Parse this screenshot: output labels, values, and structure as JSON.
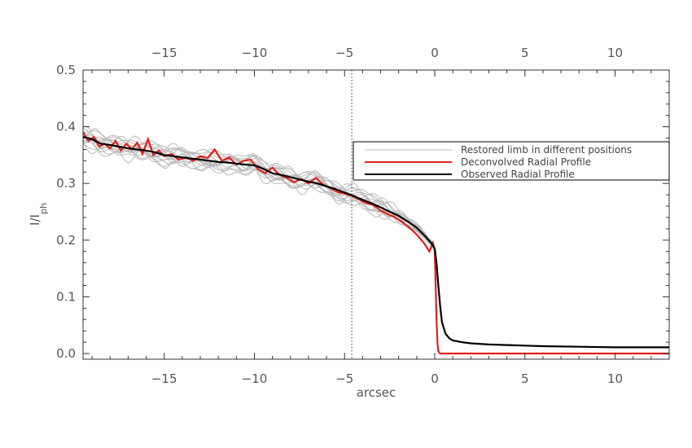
{
  "chart_data": {
    "type": "line",
    "xlabel": "arcsec",
    "ylabel": "I/I",
    "ylabel_subscript": "ph",
    "xlim": [
      -19.5,
      13
    ],
    "ylim": [
      -0.01,
      0.5
    ],
    "x_ticks": [
      -15,
      -10,
      -5,
      0,
      5,
      10
    ],
    "x_tick_labels": [
      "−15",
      "−10",
      "−5",
      "0",
      "5",
      "10"
    ],
    "y_ticks": [
      0.0,
      0.1,
      0.2,
      0.3,
      0.4,
      0.5
    ],
    "y_tick_labels": [
      "0.0",
      "0.1",
      "0.2",
      "0.3",
      "0.4",
      "0.5"
    ],
    "top_axis_ticks": [
      -15,
      -10,
      -5,
      0,
      5,
      10
    ],
    "top_axis_tick_labels": [
      "−15",
      "−10",
      "−5",
      "0",
      "5",
      "10"
    ],
    "vertical_dotted_line_x": -4.6,
    "legend_position": "right, middle",
    "series": [
      {
        "name": "Restored limb in different positions",
        "color": "#b8b8b8",
        "count": 14
      },
      {
        "name": "Deconvolved Radial Profile",
        "color": "#e0201a",
        "x": [
          -19.5,
          -19.2,
          -18.9,
          -18.6,
          -18.3,
          -18.0,
          -17.7,
          -17.4,
          -17.1,
          -16.8,
          -16.5,
          -16.2,
          -15.9,
          -15.6,
          -15.3,
          -15.0,
          -14.6,
          -14.2,
          -13.8,
          -13.4,
          -13.0,
          -12.6,
          -12.2,
          -11.8,
          -11.4,
          -11.0,
          -10.6,
          -10.2,
          -9.8,
          -9.4,
          -9.0,
          -8.6,
          -8.2,
          -7.8,
          -7.4,
          -7.0,
          -6.6,
          -6.2,
          -5.8,
          -5.4,
          -5.0,
          -4.6,
          -4.2,
          -3.8,
          -3.4,
          -3.0,
          -2.6,
          -2.2,
          -1.8,
          -1.4,
          -1.0,
          -0.6,
          -0.3,
          -0.1,
          0.0,
          0.05,
          0.1,
          0.15,
          0.2,
          0.3,
          0.5,
          1.0,
          3.0,
          6.0,
          9.0,
          13.0
        ],
        "y": [
          0.39,
          0.375,
          0.382,
          0.365,
          0.37,
          0.362,
          0.375,
          0.358,
          0.37,
          0.36,
          0.372,
          0.352,
          0.378,
          0.35,
          0.358,
          0.348,
          0.352,
          0.342,
          0.346,
          0.34,
          0.348,
          0.345,
          0.36,
          0.34,
          0.346,
          0.333,
          0.34,
          0.342,
          0.325,
          0.318,
          0.328,
          0.315,
          0.31,
          0.302,
          0.308,
          0.3,
          0.31,
          0.298,
          0.292,
          0.285,
          0.282,
          0.278,
          0.272,
          0.265,
          0.262,
          0.252,
          0.246,
          0.24,
          0.232,
          0.222,
          0.21,
          0.195,
          0.18,
          0.195,
          0.182,
          0.12,
          0.06,
          0.02,
          0.004,
          0.0,
          0.0,
          0.0,
          0.0,
          0.0,
          0.0,
          0.0
        ]
      },
      {
        "name": "Observed Radial Profile",
        "color": "#000000",
        "x": [
          -19.5,
          -19.0,
          -18.5,
          -18.0,
          -17.5,
          -17.0,
          -16.5,
          -16.0,
          -15.5,
          -15.0,
          -14.5,
          -14.0,
          -13.5,
          -13.0,
          -12.5,
          -12.0,
          -11.5,
          -11.0,
          -10.5,
          -10.0,
          -9.5,
          -9.0,
          -8.5,
          -8.0,
          -7.5,
          -7.0,
          -6.5,
          -6.0,
          -5.5,
          -5.0,
          -4.5,
          -4.0,
          -3.5,
          -3.0,
          -2.5,
          -2.0,
          -1.5,
          -1.0,
          -0.5,
          -0.2,
          0.0,
          0.1,
          0.2,
          0.3,
          0.4,
          0.6,
          0.8,
          1.0,
          1.5,
          2.0,
          3.0,
          4.0,
          5.0,
          6.0,
          8.0,
          10.0,
          13.0
        ],
        "y": [
          0.382,
          0.378,
          0.37,
          0.368,
          0.365,
          0.362,
          0.36,
          0.358,
          0.355,
          0.35,
          0.348,
          0.346,
          0.344,
          0.342,
          0.34,
          0.338,
          0.337,
          0.335,
          0.333,
          0.332,
          0.326,
          0.318,
          0.315,
          0.311,
          0.307,
          0.303,
          0.3,
          0.295,
          0.29,
          0.284,
          0.278,
          0.271,
          0.265,
          0.258,
          0.25,
          0.243,
          0.233,
          0.222,
          0.206,
          0.195,
          0.185,
          0.16,
          0.12,
          0.085,
          0.055,
          0.035,
          0.027,
          0.023,
          0.02,
          0.018,
          0.016,
          0.015,
          0.014,
          0.013,
          0.012,
          0.011,
          0.011
        ]
      }
    ]
  }
}
